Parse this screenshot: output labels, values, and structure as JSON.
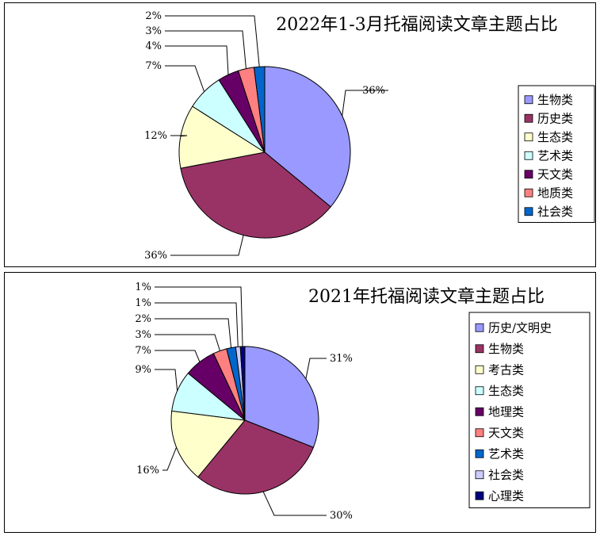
{
  "chart_data": [
    {
      "type": "pie",
      "title": "2022年1-3月托福阅读文章主题占比",
      "legend_position": "right",
      "slices": [
        {
          "name": "生物类",
          "value": 36,
          "label": "36%",
          "color": "#9999ff"
        },
        {
          "name": "历史类",
          "value": 36,
          "label": "36%",
          "color": "#993366"
        },
        {
          "name": "生态类",
          "value": 12,
          "label": "12%",
          "color": "#ffffcc"
        },
        {
          "name": "艺术类",
          "value": 7,
          "label": "7%",
          "color": "#ccffff"
        },
        {
          "name": "天文类",
          "value": 4,
          "label": "4%",
          "color": "#660066"
        },
        {
          "name": "地质类",
          "value": 3,
          "label": "3%",
          "color": "#ff8080"
        },
        {
          "name": "社会类",
          "value": 2,
          "label": "2%",
          "color": "#0066cc"
        }
      ]
    },
    {
      "type": "pie",
      "title": "2021年托福阅读文章主题占比",
      "legend_position": "right",
      "slices": [
        {
          "name": "历史/文明史",
          "value": 31,
          "label": "31%",
          "color": "#9999ff"
        },
        {
          "name": "生物类",
          "value": 30,
          "label": "30%",
          "color": "#993366"
        },
        {
          "name": "考古类",
          "value": 16,
          "label": "16%",
          "color": "#ffffcc"
        },
        {
          "name": "生态类",
          "value": 9,
          "label": "9%",
          "color": "#ccffff"
        },
        {
          "name": "地理类",
          "value": 7,
          "label": "7%",
          "color": "#660066"
        },
        {
          "name": "天文类",
          "value": 3,
          "label": "3%",
          "color": "#ff8080"
        },
        {
          "name": "艺术类",
          "value": 2,
          "label": "2%",
          "color": "#0066cc"
        },
        {
          "name": "社会类",
          "value": 1,
          "label": "1%",
          "color": "#ccccff"
        },
        {
          "name": "心理类",
          "value": 1,
          "label": "1%",
          "color": "#000080"
        }
      ]
    }
  ]
}
